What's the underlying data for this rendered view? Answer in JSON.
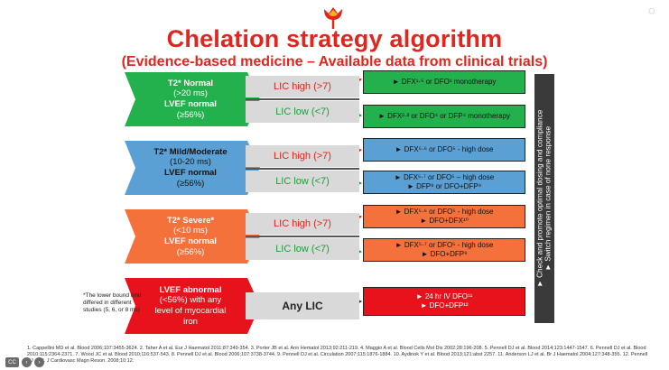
{
  "title": "Chelation strategy algorithm",
  "subtitle": "(Evidence-based medicine – Available data from clinical trials)",
  "colors": {
    "title": "#e0261f",
    "green": "#22b14c",
    "blue": "#5aa0d5",
    "orange": "#f4713c",
    "red": "#e8121c"
  },
  "groups": [
    {
      "line1": "T2* Normal",
      "line2": "(>20 ms)",
      "line3": "LVEF normal",
      "line4": "(≥56%)",
      "lic_high": "LIC high (>7)",
      "lic_low": "LIC low (<7)",
      "box1": {
        "l1": "► DFX¹·⁵ or DFO¹ monotherapy"
      },
      "box2": {
        "l1": "► DFX²·³ or DFO⁴ or DFP⁴ monotherapy"
      }
    },
    {
      "line1": "T2* Mild/Moderate",
      "line2": "(10-20 ms)",
      "line3": "LVEF normal",
      "line4": "(≥56%)",
      "lic_high": "LIC high (>7)",
      "lic_low": "LIC low (<7)",
      "box1": {
        "l1": "► DFX⁵·⁶ or DFO⁵ - high dose"
      },
      "box2": {
        "l1": "► DFX⁵·⁷ or DFO⁵ – high dose",
        "l2": "► DFP⁸ or DFO+DFP⁹"
      }
    },
    {
      "line1": "T2* Severe*",
      "line2": "(<10 ms)",
      "line3": "LVEF normal",
      "line4": "(≥56%)",
      "lic_high": "LIC high (>7)",
      "lic_low": "LIC low (<7)",
      "box1": {
        "l1": "► DFX⁵·⁶ or DFO⁵ - high dose",
        "l2": "► DFO+DFX¹⁰"
      },
      "box2": {
        "l1": "► DFX⁵·⁷ or DFO⁵ - high dose",
        "l2": "► DFO+DFP⁹"
      }
    },
    {
      "line1": "LVEF abnormal",
      "line2": "(<56%) with any",
      "line3": "level of myocardial",
      "line4": "iron",
      "lic_any": "Any LIC",
      "box1": {
        "l1": "► 24 hr IV DFO¹¹",
        "l2": "► DFO+DFP¹²"
      }
    }
  ],
  "side_text": {
    "l1": "► Check and promote optimal dosing and compliance",
    "l2": "► Switch regimen in case of none response"
  },
  "footnote": "*The lower bound limit differed in different studies (5, 6, or 8 ms)",
  "references": "1. Cappellini MD et al. Blood 2006;107:3455-3624. 2. Taher A et al. Eur J Haematol 2011;87:349-354. 3. Porter JB et al. Ann Hematol 2013;92:211-219. 4. Maggio A et al. Blood Cells Mol Dis 2002;28:196-208. 5. Pennell DJ et al. Blood 2014;123:1447-1547. 6. Pennell DJ et al. Blood 2010;115:2364-2371. 7. Wood JC et al. Blood 2010;116:537-543. 8. Pennell DJ et al. Blood 2006;107:3738-3744. 9. Pennell DJ et al. Circulation 2007;115:1876-1884. 10. Aydinok Y et al. Blood 2013;121:abst 2257. 11. Anderson LJ et al. Br J Haematol 2004;127:348-355. 12. Pennell DJ et al. J Cardiovasc Magn Reson. 2008;10:12.",
  "toolbar": {
    "cc": "CC",
    "prev": "‹",
    "next": "›"
  }
}
